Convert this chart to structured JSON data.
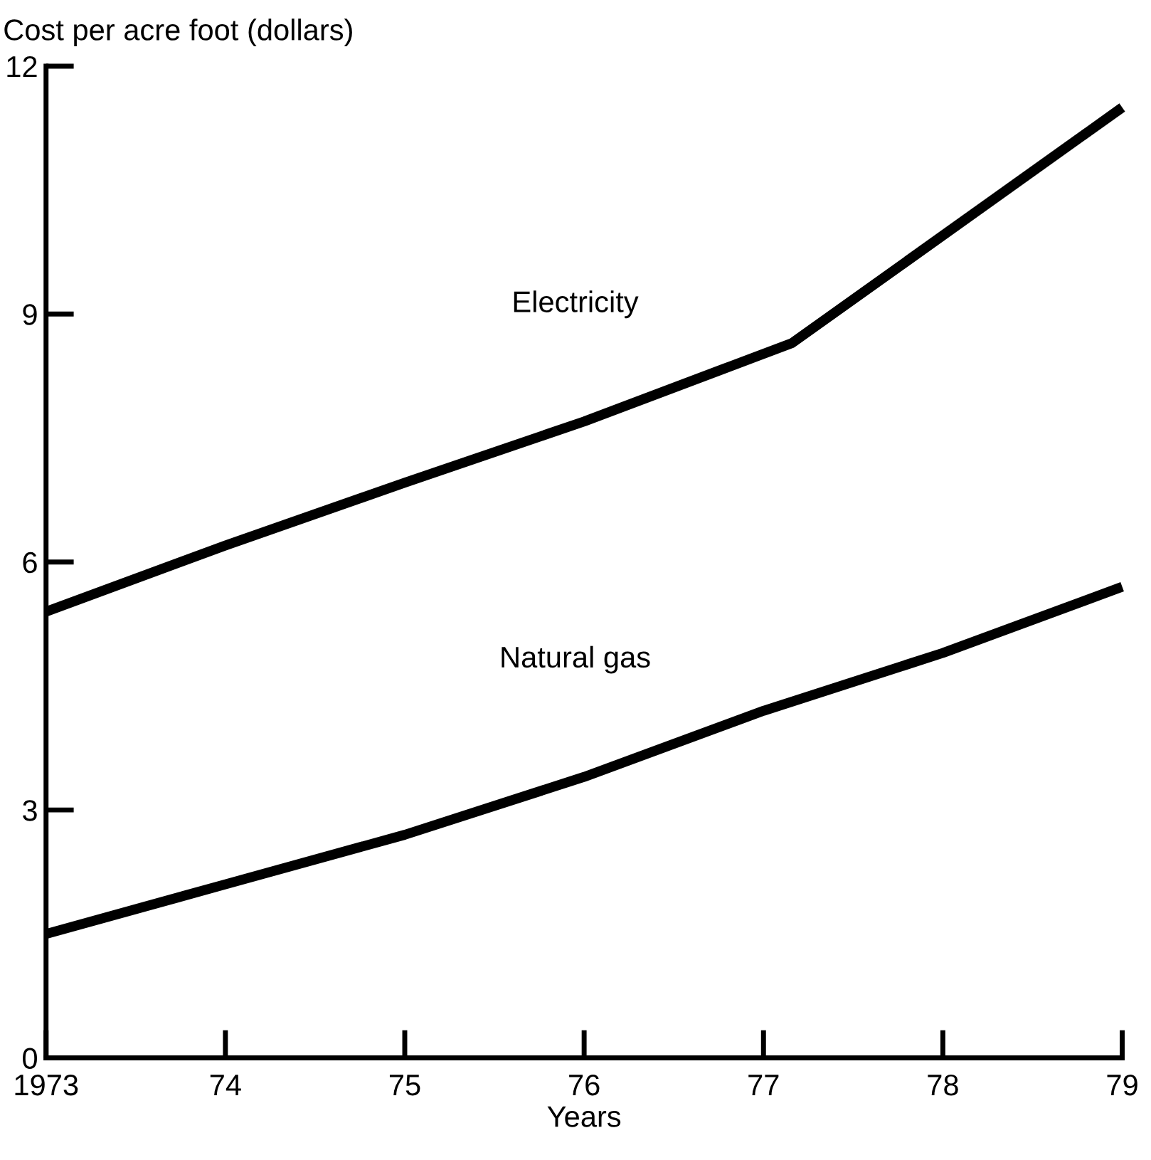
{
  "chart_data": {
    "type": "line",
    "ylabel": "Cost per acre foot (dollars)",
    "xlabel": "Years",
    "xlim": [
      1973,
      1979
    ],
    "xticks": [
      1973,
      {
        "value": 1974,
        "label": "74"
      },
      {
        "value": 1975,
        "label": "75"
      },
      {
        "value": 1976,
        "label": "76"
      },
      {
        "value": 1977,
        "label": "77"
      },
      {
        "value": 1978,
        "label": "78"
      },
      {
        "value": 1979,
        "label": "79"
      }
    ],
    "ylim": [
      0,
      12
    ],
    "yticks": [
      0,
      3,
      6,
      9,
      12
    ],
    "grid": false,
    "legend": false,
    "marker": "none",
    "line_style": "solid",
    "series": [
      {
        "name": "Electricity",
        "color": "#000000",
        "x": [
          1973,
          1974,
          1975,
          1976,
          1977.16,
          1979
        ],
        "values": [
          5.4,
          6.2,
          6.96,
          7.7,
          8.65,
          11.5
        ]
      },
      {
        "name": "Natural gas",
        "color": "#000000",
        "x": [
          1973,
          1974,
          1975,
          1976,
          1977,
          1978,
          1979
        ],
        "values": [
          1.5,
          2.1,
          2.7,
          3.4,
          4.2,
          4.9,
          5.7
        ]
      }
    ]
  }
}
